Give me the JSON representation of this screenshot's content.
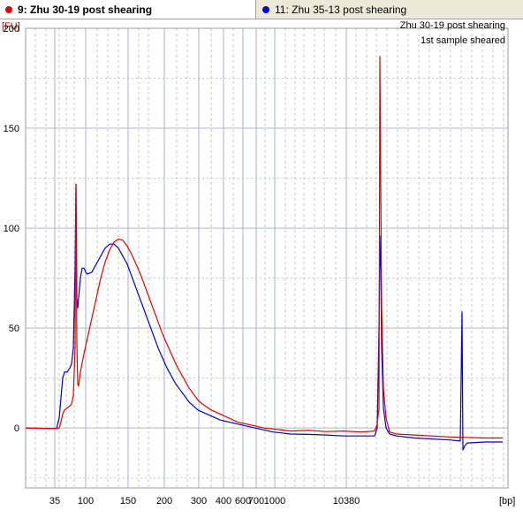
{
  "tabs": [
    {
      "label": "9: Zhu 30-19 post shearing",
      "color": "#e00000",
      "active": true
    },
    {
      "label": "11: Zhu 35-13 post shearing",
      "color": "#0000dd",
      "active": false
    }
  ],
  "annotations": [
    "Zhu 30-19 post shearing",
    "1st sample sheared"
  ],
  "chart_data": {
    "type": "line",
    "title": "",
    "xlabel": "[bp]",
    "ylabel": "[FU]",
    "ylim": [
      -30,
      200
    ],
    "y_ticks": [
      0,
      50,
      100,
      150,
      200
    ],
    "x_ticks": [
      "35",
      "100",
      "150",
      "200",
      "300",
      "400",
      "600",
      "700",
      "1000",
      "10380"
    ],
    "grid": true,
    "series": [
      {
        "name": "9: Zhu 30-19 post shearing",
        "color": "#e00000",
        "points": [
          [
            0,
            0
          ],
          [
            35,
            -0.3
          ],
          [
            38,
            0
          ],
          [
            40,
            3
          ],
          [
            42,
            7
          ],
          [
            44,
            9
          ],
          [
            47,
            10
          ],
          [
            50,
            11
          ],
          [
            52,
            12
          ],
          [
            54,
            16
          ],
          [
            56,
            40
          ],
          [
            57,
            122
          ],
          [
            58,
            42
          ],
          [
            59,
            22
          ],
          [
            60,
            21
          ],
          [
            62,
            28
          ],
          [
            65,
            35
          ],
          [
            70,
            45
          ],
          [
            75,
            55
          ],
          [
            80,
            65
          ],
          [
            85,
            75
          ],
          [
            90,
            83
          ],
          [
            95,
            89
          ],
          [
            100,
            93
          ],
          [
            105,
            94.5
          ],
          [
            110,
            94
          ],
          [
            115,
            91
          ],
          [
            120,
            87
          ],
          [
            125,
            82
          ],
          [
            130,
            77
          ],
          [
            135,
            71
          ],
          [
            140,
            65
          ],
          [
            145,
            59
          ],
          [
            150,
            53
          ],
          [
            155,
            47
          ],
          [
            160,
            42
          ],
          [
            165,
            37
          ],
          [
            170,
            32
          ],
          [
            175,
            28
          ],
          [
            180,
            24
          ],
          [
            185,
            20
          ],
          [
            190,
            17
          ],
          [
            195,
            14
          ],
          [
            200,
            12
          ],
          [
            210,
            9
          ],
          [
            220,
            7
          ],
          [
            230,
            5
          ],
          [
            240,
            3
          ],
          [
            250,
            2
          ],
          [
            260,
            1
          ],
          [
            270,
            0
          ],
          [
            280,
            -0.5
          ],
          [
            290,
            -1
          ],
          [
            300,
            -1.5
          ],
          [
            320,
            -1.2
          ],
          [
            340,
            -1.8
          ],
          [
            360,
            -1.5
          ],
          [
            380,
            -2
          ],
          [
            395,
            -1.5
          ],
          [
            398,
            2
          ],
          [
            400,
            10
          ],
          [
            401,
            186
          ],
          [
            402,
            120
          ],
          [
            403,
            60
          ],
          [
            405,
            20
          ],
          [
            408,
            5
          ],
          [
            412,
            -2
          ],
          [
            420,
            -3
          ],
          [
            440,
            -3.5
          ],
          [
            480,
            -4.5
          ],
          [
            520,
            -5
          ],
          [
            540,
            -5
          ]
        ]
      },
      {
        "name": "11: Zhu 35-13 post shearing",
        "color": "#0000cc",
        "points": [
          [
            0,
            0
          ],
          [
            35,
            -0.3
          ],
          [
            38,
            5
          ],
          [
            40,
            15
          ],
          [
            42,
            25
          ],
          [
            44,
            28
          ],
          [
            47,
            28
          ],
          [
            50,
            30
          ],
          [
            52,
            32
          ],
          [
            54,
            40
          ],
          [
            56,
            80
          ],
          [
            57,
            122
          ],
          [
            58,
            65
          ],
          [
            59,
            60
          ],
          [
            60,
            65
          ],
          [
            62,
            75
          ],
          [
            64,
            80
          ],
          [
            66,
            80
          ],
          [
            68,
            78
          ],
          [
            70,
            77
          ],
          [
            75,
            78
          ],
          [
            80,
            82
          ],
          [
            85,
            86
          ],
          [
            90,
            90
          ],
          [
            95,
            92
          ],
          [
            100,
            92
          ],
          [
            105,
            90
          ],
          [
            110,
            86
          ],
          [
            115,
            82
          ],
          [
            120,
            76
          ],
          [
            125,
            70
          ],
          [
            130,
            64
          ],
          [
            135,
            58
          ],
          [
            140,
            52
          ],
          [
            145,
            46
          ],
          [
            150,
            40
          ],
          [
            155,
            35
          ],
          [
            160,
            30
          ],
          [
            165,
            26
          ],
          [
            170,
            22
          ],
          [
            175,
            19
          ],
          [
            180,
            16
          ],
          [
            185,
            13
          ],
          [
            190,
            11
          ],
          [
            195,
            9
          ],
          [
            200,
            8
          ],
          [
            210,
            6
          ],
          [
            220,
            4
          ],
          [
            230,
            3
          ],
          [
            240,
            2
          ],
          [
            250,
            1
          ],
          [
            260,
            0
          ],
          [
            270,
            -1
          ],
          [
            280,
            -2
          ],
          [
            290,
            -2.5
          ],
          [
            300,
            -3
          ],
          [
            320,
            -3.2
          ],
          [
            340,
            -3.5
          ],
          [
            360,
            -4
          ],
          [
            380,
            -4
          ],
          [
            395,
            -4
          ],
          [
            398,
            0
          ],
          [
            400,
            50
          ],
          [
            401,
            96
          ],
          [
            402,
            80
          ],
          [
            403,
            40
          ],
          [
            405,
            10
          ],
          [
            408,
            0
          ],
          [
            412,
            -3
          ],
          [
            420,
            -4
          ],
          [
            440,
            -5
          ],
          [
            480,
            -6
          ],
          [
            492,
            -6.5
          ],
          [
            494,
            58
          ],
          [
            495,
            -11
          ],
          [
            497,
            -9
          ],
          [
            500,
            -7.5
          ],
          [
            520,
            -7
          ],
          [
            540,
            -7
          ]
        ]
      }
    ]
  }
}
